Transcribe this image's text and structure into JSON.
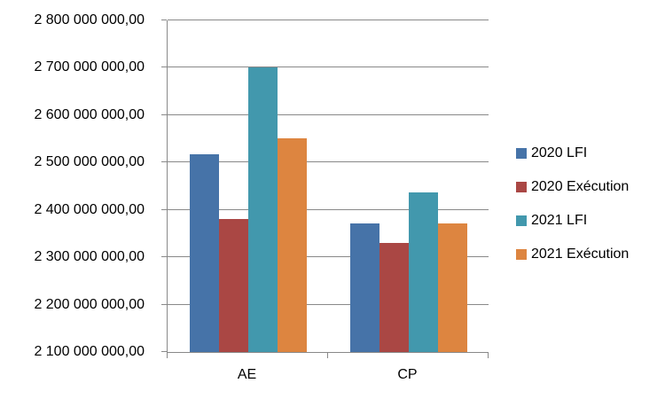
{
  "chart_data": {
    "type": "bar",
    "title": "",
    "xlabel": "",
    "ylabel": "",
    "categories": [
      "AE",
      "CP"
    ],
    "series": [
      {
        "name": "2020 LFI",
        "color": "#4673A8",
        "values": [
          2518000000,
          2372000000
        ]
      },
      {
        "name": "2020 Exécution",
        "color": "#AA4744",
        "values": [
          2381000000,
          2331000000
        ]
      },
      {
        "name": "2021 LFI",
        "color": "#4298AD",
        "values": [
          2700000000,
          2436000000
        ]
      },
      {
        "name": "2021 Exécution",
        "color": "#DD8540",
        "values": [
          2552000000,
          2372000000
        ]
      }
    ],
    "ylim": [
      2100000000,
      2800000000
    ],
    "ytick_step": 100000000,
    "ytick_labels_bottom_to_top": [
      "2 100 000 000,00",
      "2 200 000 000,00",
      "2 300 000 000,00",
      "2 400 000 000,00",
      "2 500 000 000,00",
      "2 600 000 000,00",
      "2 700 000 000,00",
      "2 800 000 000,00"
    ],
    "grid": true,
    "legend_position": "right",
    "axis_color": "#898989",
    "gridline_color": "#898989",
    "text_color": "#000000",
    "background_color": "#FFFFFF"
  }
}
